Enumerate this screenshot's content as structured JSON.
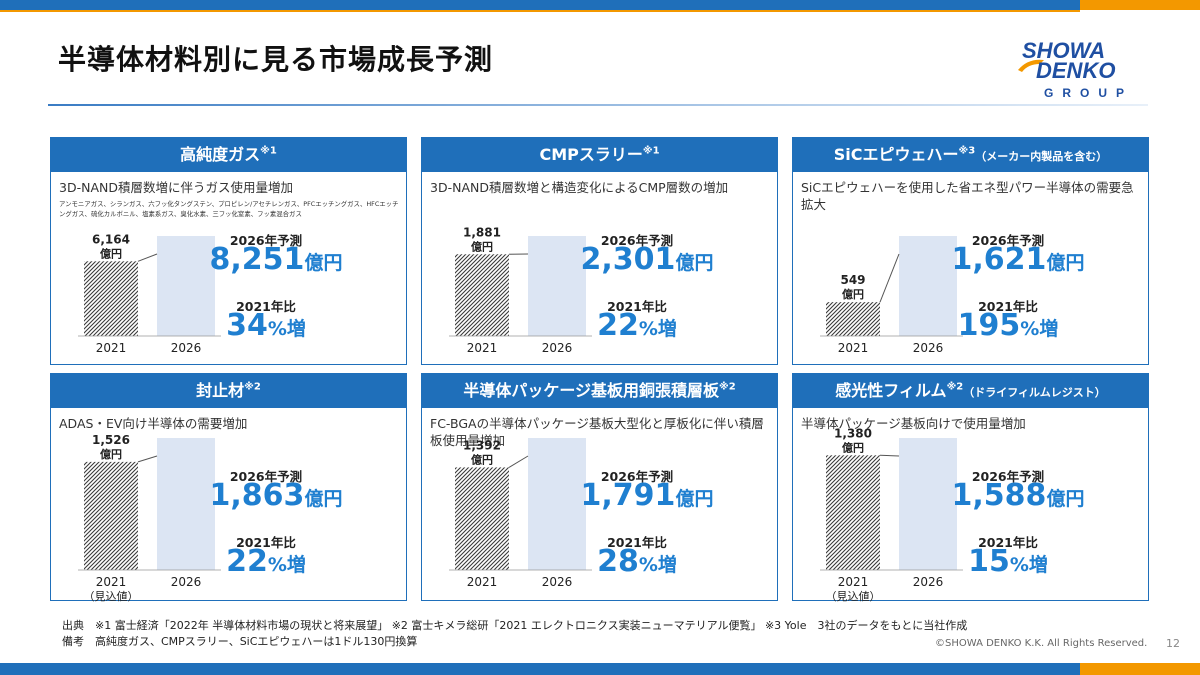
{
  "page": {
    "title": "半導体材料別に見る市場成長予測",
    "page_number": "12",
    "copyright": "©SHOWA DENKO K.K. All Rights Reserved."
  },
  "logo": {
    "line1": "SHOWA",
    "line2": "DENKO",
    "line3": "GROUP"
  },
  "footnotes": {
    "source": "出典　※1 富士経済「2022年 半導体材料市場の現状と将来展望」 ※2 富士キメラ総研「2021 エレクトロニクス実装ニューマテリアル便覧」 ※3 Yole　3社のデータをもとに当社作成",
    "remark": "備考　高純度ガス、CMPスラリー、SiCエピウェハーは1ドル130円換算"
  },
  "colors": {
    "header_blue": "#1f6fba",
    "accent_orange": "#f39800",
    "value_blue": "#1f7fd0",
    "bar_2026": "#dce5f3"
  },
  "chart_data": [
    {
      "type": "bar",
      "title": "高純度ガス",
      "note": "※1",
      "subtitle": "",
      "description": "3D-NAND積層数増に伴うガス使用量増加",
      "gases": "アンモニアガス、シランガス、六フッ化タングステン、プロピレン/アセチレンガス、PFCエッチングガス、HFCエッチングガス、硫化カルボニル、塩素系ガス、臭化水素、三フッ化窒素、フッ素混合ガス",
      "categories": [
        "2021",
        "2026"
      ],
      "values": [
        6164,
        8251
      ],
      "value_labels": [
        "6,164",
        "8,251"
      ],
      "value_unit": "億円",
      "year_note": "",
      "forecast_label": "2026年予測",
      "ratio_label": "2021年比",
      "growth_num": "34",
      "growth_unit": "%増"
    },
    {
      "type": "bar",
      "title": "CMPスラリー",
      "note": "※1",
      "subtitle": "",
      "description": "3D-NAND積層数増と構造変化によるCMP層数の増加",
      "gases": "",
      "categories": [
        "2021",
        "2026"
      ],
      "values": [
        1881,
        2301
      ],
      "value_labels": [
        "1,881",
        "2,301"
      ],
      "value_unit": "億円",
      "year_note": "",
      "forecast_label": "2026年予測",
      "ratio_label": "2021年比",
      "growth_num": "22",
      "growth_unit": "%増"
    },
    {
      "type": "bar",
      "title": "SiCエピウェハー",
      "note": "※3",
      "subtitle": "（メーカー内製品を含む）",
      "description": "SiCエピウェハーを使用した省エネ型パワー半導体の需要急拡大",
      "gases": "",
      "categories": [
        "2021",
        "2026"
      ],
      "values": [
        549,
        1621
      ],
      "value_labels": [
        "549",
        "1,621"
      ],
      "value_unit": "億円",
      "year_note": "",
      "forecast_label": "2026年予測",
      "ratio_label": "2021年比",
      "growth_num": "195",
      "growth_unit": "%増"
    },
    {
      "type": "bar",
      "title": "封止材",
      "note": "※2",
      "subtitle": "",
      "description": "ADAS・EV向け半導体の需要増加",
      "gases": "",
      "categories": [
        "2021",
        "2026"
      ],
      "values": [
        1526,
        1863
      ],
      "value_labels": [
        "1,526",
        "1,863"
      ],
      "value_unit": "億円",
      "year_note": "（見込値）",
      "forecast_label": "2026年予測",
      "ratio_label": "2021年比",
      "growth_num": "22",
      "growth_unit": "%増"
    },
    {
      "type": "bar",
      "title": "半導体パッケージ基板用銅張積層板",
      "note": "※2",
      "subtitle": "",
      "description": "FC-BGAの半導体パッケージ基板大型化と厚板化に伴い積層板使用量増加",
      "gases": "",
      "categories": [
        "2021",
        "2026"
      ],
      "values": [
        1392,
        1791
      ],
      "value_labels": [
        "1,392",
        "1,791"
      ],
      "value_unit": "億円",
      "year_note": "",
      "forecast_label": "2026年予測",
      "ratio_label": "2021年比",
      "growth_num": "28",
      "growth_unit": "%増"
    },
    {
      "type": "bar",
      "title": "感光性フィルム",
      "note": "※2",
      "subtitle": "（ドライフィルムレジスト）",
      "description": "半導体パッケージ基板向けで使用量増加",
      "gases": "",
      "categories": [
        "2021",
        "2026"
      ],
      "values": [
        1380,
        1588
      ],
      "value_labels": [
        "1,380",
        "1,588"
      ],
      "value_unit": "億円",
      "year_note": "（見込値）",
      "forecast_label": "2026年予測",
      "ratio_label": "2021年比",
      "growth_num": "15",
      "growth_unit": "%増"
    }
  ]
}
